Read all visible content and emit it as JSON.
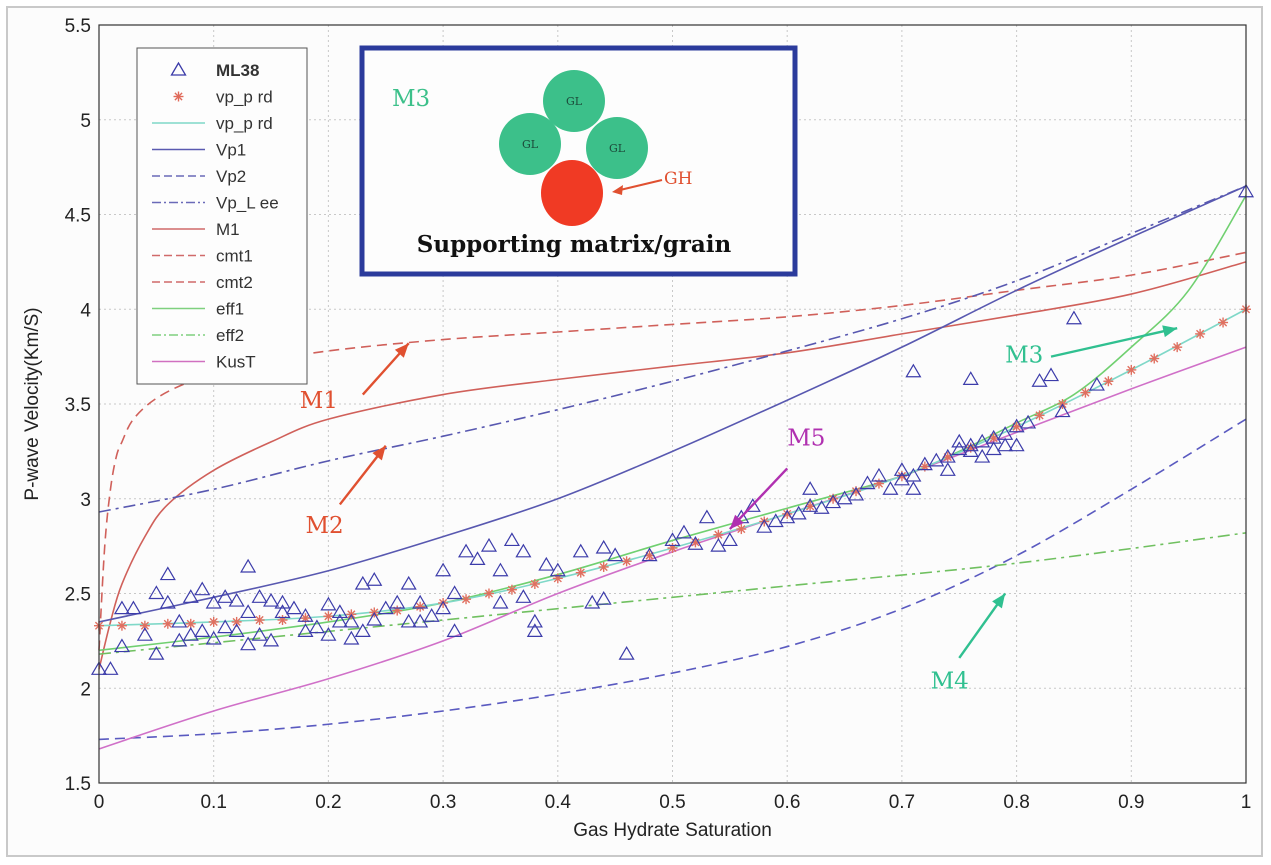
{
  "chart_data": {
    "type": "scatter",
    "xlabel": "Gas Hydrate Saturation",
    "ylabel": "P-wave Velocity(Km/S)",
    "xlim": [
      0,
      1
    ],
    "ylim": [
      1.5,
      5.5
    ],
    "xticks": [
      "0",
      "0.1",
      "0.2",
      "0.3",
      "0.4",
      "0.5",
      "0.6",
      "0.7",
      "0.8",
      "0.9",
      "1"
    ],
    "yticks": [
      "1.5",
      "2",
      "2.5",
      "3",
      "3.5",
      "4",
      "4.5",
      "5",
      "5.5"
    ],
    "grid": true,
    "legend_position": "top-left",
    "legend": [
      {
        "label": "ML38",
        "bold": true,
        "style": "triangle",
        "color": "#3a3aa8"
      },
      {
        "label": "vp_p rd",
        "style": "star",
        "color": "#e06a5a"
      },
      {
        "label": "vp_p rd",
        "style": "solid",
        "color": "#7fd8c8"
      },
      {
        "label": "Vp1",
        "style": "solid",
        "color": "#5a5ab0"
      },
      {
        "label": "Vp2",
        "style": "dashed",
        "color": "#6a6ab8"
      },
      {
        "label": "Vp_L ee",
        "style": "dashdot",
        "color": "#6a6ab8"
      },
      {
        "label": "M1",
        "style": "solid",
        "color": "#d06a6a"
      },
      {
        "label": "cmt1",
        "style": "dashed",
        "color": "#d06a6a"
      },
      {
        "label": "cmt2",
        "style": "dashed",
        "color": "#d06a6a"
      },
      {
        "label": "eff1",
        "style": "solid",
        "color": "#7fd07f"
      },
      {
        "label": "eff2",
        "style": "dashdot",
        "color": "#7fd07f"
      },
      {
        "label": "KusT",
        "style": "solid",
        "color": "#d070c0"
      }
    ],
    "series": [
      {
        "id": "cmt1",
        "color": "#d0605a",
        "dash": "10 6",
        "x": [
          0,
          0.005,
          0.01,
          0.015,
          0.02,
          0.03,
          0.05,
          0.08,
          0.12,
          0.2,
          0.3,
          0.4,
          0.5,
          0.6,
          0.7,
          0.8,
          0.9,
          1.0
        ],
        "y": [
          2.2,
          2.75,
          3.05,
          3.22,
          3.3,
          3.42,
          3.53,
          3.62,
          3.7,
          3.78,
          3.84,
          3.88,
          3.92,
          3.96,
          4.02,
          4.1,
          4.18,
          4.3
        ]
      },
      {
        "id": "cmt2",
        "color": "#d0605a",
        "dash": "",
        "x": [
          0,
          0.01,
          0.02,
          0.04,
          0.06,
          0.1,
          0.15,
          0.2,
          0.3,
          0.4,
          0.5,
          0.6,
          0.7,
          0.8,
          0.9,
          1.0
        ],
        "y": [
          2.1,
          2.35,
          2.55,
          2.8,
          2.97,
          3.15,
          3.3,
          3.42,
          3.55,
          3.63,
          3.7,
          3.77,
          3.87,
          3.97,
          4.08,
          4.25
        ]
      },
      {
        "id": "Vp1",
        "color": "#5858b0",
        "dash": "",
        "x": [
          0,
          0.1,
          0.2,
          0.3,
          0.4,
          0.5,
          0.6,
          0.7,
          0.8,
          0.9,
          1.0
        ],
        "y": [
          2.35,
          2.48,
          2.62,
          2.8,
          3.0,
          3.25,
          3.52,
          3.8,
          4.1,
          4.38,
          4.65
        ]
      },
      {
        "id": "VpLee",
        "color": "#5858b0",
        "dash": "12 5 3 5",
        "x": [
          0,
          0.1,
          0.2,
          0.3,
          0.4,
          0.5,
          0.6,
          0.7,
          0.8,
          0.9,
          1.0
        ],
        "y": [
          2.93,
          3.05,
          3.2,
          3.33,
          3.47,
          3.62,
          3.78,
          3.95,
          4.15,
          4.4,
          4.65
        ]
      },
      {
        "id": "Vp2",
        "color": "#5a5ac0",
        "dash": "10 6",
        "x": [
          0,
          0.1,
          0.2,
          0.3,
          0.4,
          0.5,
          0.6,
          0.7,
          0.8,
          0.9,
          1.0
        ],
        "y": [
          1.73,
          1.76,
          1.81,
          1.88,
          1.97,
          2.08,
          2.22,
          2.42,
          2.7,
          3.05,
          3.42
        ]
      },
      {
        "id": "eff1",
        "color": "#70d070",
        "dash": "",
        "x": [
          0,
          0.1,
          0.2,
          0.3,
          0.4,
          0.5,
          0.6,
          0.7,
          0.75,
          0.8,
          0.85,
          0.9,
          0.95,
          1.0
        ],
        "y": [
          2.2,
          2.27,
          2.35,
          2.45,
          2.6,
          2.78,
          2.95,
          3.12,
          3.25,
          3.4,
          3.55,
          3.8,
          4.1,
          4.6
        ]
      },
      {
        "id": "eff2",
        "color": "#70c060",
        "dash": "12 5 3 5",
        "x": [
          0,
          0.2,
          0.4,
          0.6,
          0.8,
          1.0
        ],
        "y": [
          2.18,
          2.3,
          2.42,
          2.54,
          2.66,
          2.82
        ]
      },
      {
        "id": "KusT",
        "color": "#d070c8",
        "dash": "",
        "x": [
          0,
          0.1,
          0.2,
          0.3,
          0.4,
          0.5,
          0.6,
          0.7,
          0.8,
          0.9,
          1.0
        ],
        "y": [
          1.68,
          1.88,
          2.05,
          2.25,
          2.5,
          2.72,
          2.92,
          3.12,
          3.35,
          3.58,
          3.8
        ]
      },
      {
        "id": "vpprd",
        "color": "#7fd8c8",
        "dash": "",
        "x": [
          0,
          0.1,
          0.2,
          0.3,
          0.4,
          0.5,
          0.6,
          0.7,
          0.8,
          0.9,
          1.0
        ],
        "y": [
          2.33,
          2.35,
          2.38,
          2.45,
          2.58,
          2.74,
          2.92,
          3.12,
          3.38,
          3.68,
          4.0
        ]
      }
    ],
    "stars_vpprd": {
      "color": "#e07060",
      "x": [
        0,
        0.02,
        0.04,
        0.06,
        0.08,
        0.1,
        0.12,
        0.14,
        0.16,
        0.18,
        0.2,
        0.22,
        0.24,
        0.26,
        0.28,
        0.3,
        0.32,
        0.34,
        0.36,
        0.38,
        0.4,
        0.42,
        0.44,
        0.46,
        0.48,
        0.5,
        0.52,
        0.54,
        0.56,
        0.58,
        0.6,
        0.62,
        0.64,
        0.66,
        0.68,
        0.7,
        0.72,
        0.74,
        0.76,
        0.78,
        0.8,
        0.82,
        0.84,
        0.86,
        0.88,
        0.9,
        0.92,
        0.94,
        0.96,
        0.98,
        1.0
      ],
      "y": [
        2.33,
        2.33,
        2.33,
        2.34,
        2.34,
        2.35,
        2.35,
        2.36,
        2.36,
        2.37,
        2.38,
        2.39,
        2.4,
        2.41,
        2.43,
        2.45,
        2.47,
        2.5,
        2.52,
        2.55,
        2.58,
        2.61,
        2.64,
        2.67,
        2.7,
        2.74,
        2.77,
        2.81,
        2.84,
        2.88,
        2.92,
        2.96,
        3.0,
        3.04,
        3.08,
        3.12,
        3.17,
        3.22,
        3.27,
        3.32,
        3.38,
        3.44,
        3.5,
        3.56,
        3.62,
        3.68,
        3.74,
        3.8,
        3.87,
        3.93,
        4.0
      ]
    },
    "ml38_points": {
      "color": "#3c3caa",
      "x": [
        0.0,
        0.01,
        0.02,
        0.02,
        0.03,
        0.04,
        0.05,
        0.05,
        0.06,
        0.06,
        0.07,
        0.07,
        0.08,
        0.08,
        0.09,
        0.09,
        0.1,
        0.1,
        0.11,
        0.11,
        0.12,
        0.12,
        0.13,
        0.13,
        0.13,
        0.14,
        0.14,
        0.15,
        0.15,
        0.16,
        0.16,
        0.17,
        0.18,
        0.18,
        0.19,
        0.2,
        0.2,
        0.21,
        0.21,
        0.22,
        0.22,
        0.23,
        0.23,
        0.24,
        0.24,
        0.25,
        0.26,
        0.27,
        0.27,
        0.28,
        0.28,
        0.29,
        0.3,
        0.3,
        0.31,
        0.31,
        0.32,
        0.33,
        0.34,
        0.35,
        0.35,
        0.36,
        0.37,
        0.37,
        0.38,
        0.38,
        0.39,
        0.4,
        0.42,
        0.43,
        0.44,
        0.44,
        0.45,
        0.46,
        0.48,
        0.5,
        0.51,
        0.52,
        0.53,
        0.54,
        0.55,
        0.56,
        0.57,
        0.58,
        0.59,
        0.6,
        0.61,
        0.62,
        0.62,
        0.63,
        0.64,
        0.65,
        0.66,
        0.67,
        0.68,
        0.69,
        0.7,
        0.7,
        0.71,
        0.71,
        0.72,
        0.73,
        0.74,
        0.74,
        0.75,
        0.75,
        0.76,
        0.76,
        0.77,
        0.77,
        0.78,
        0.78,
        0.79,
        0.79,
        0.8,
        0.8,
        0.81,
        0.82,
        0.83,
        0.84,
        0.85,
        0.87,
        0.71,
        0.76,
        1.0
      ],
      "y": [
        2.1,
        2.1,
        2.42,
        2.22,
        2.42,
        2.28,
        2.18,
        2.5,
        2.45,
        2.6,
        2.25,
        2.35,
        2.28,
        2.48,
        2.52,
        2.3,
        2.45,
        2.26,
        2.48,
        2.32,
        2.3,
        2.46,
        2.23,
        2.64,
        2.4,
        2.28,
        2.48,
        2.46,
        2.25,
        2.4,
        2.45,
        2.42,
        2.38,
        2.3,
        2.32,
        2.28,
        2.44,
        2.35,
        2.4,
        2.26,
        2.35,
        2.3,
        2.55,
        2.36,
        2.57,
        2.42,
        2.45,
        2.35,
        2.55,
        2.35,
        2.45,
        2.38,
        2.42,
        2.62,
        2.3,
        2.5,
        2.72,
        2.68,
        2.75,
        2.62,
        2.45,
        2.78,
        2.48,
        2.72,
        2.35,
        2.3,
        2.65,
        2.62,
        2.72,
        2.45,
        2.74,
        2.47,
        2.7,
        2.18,
        2.7,
        2.78,
        2.82,
        2.76,
        2.9,
        2.75,
        2.78,
        2.9,
        2.96,
        2.85,
        2.88,
        2.9,
        2.92,
        2.96,
        3.05,
        2.95,
        2.98,
        3.0,
        3.02,
        3.08,
        3.12,
        3.05,
        3.1,
        3.15,
        3.05,
        3.12,
        3.18,
        3.2,
        3.22,
        3.15,
        3.26,
        3.3,
        3.25,
        3.28,
        3.3,
        3.22,
        3.32,
        3.26,
        3.28,
        3.34,
        3.38,
        3.28,
        3.4,
        3.62,
        3.65,
        3.46,
        3.95,
        3.6,
        3.67,
        3.63,
        4.62
      ]
    },
    "annotations": [
      {
        "label": "M1",
        "color": "#e05030",
        "data_x": 0.175,
        "data_y": 3.48,
        "arrow_to": [
          0.27,
          3.82
        ],
        "arrow_from": [
          0.23,
          3.55
        ]
      },
      {
        "label": "M2",
        "color": "#e05030",
        "data_x": 0.18,
        "data_y": 2.82,
        "arrow_to": [
          0.25,
          3.28
        ],
        "arrow_from": [
          0.21,
          2.97
        ]
      },
      {
        "label": "M3",
        "color": "#30c090",
        "data_x": 0.79,
        "data_y": 3.72,
        "arrow_to": [
          0.94,
          3.9
        ],
        "arrow_from": [
          0.83,
          3.75
        ]
      },
      {
        "label": "M4",
        "color": "#30c090",
        "data_x": 0.725,
        "data_y": 2.0,
        "arrow_to": [
          0.79,
          2.5
        ],
        "arrow_from": [
          0.75,
          2.16
        ]
      },
      {
        "label": "M5",
        "color": "#b030b0",
        "data_x": 0.6,
        "data_y": 3.28,
        "arrow_to": [
          0.55,
          2.84
        ],
        "arrow_from": [
          0.6,
          3.16
        ]
      }
    ],
    "inset": {
      "label": "M3",
      "grain_label": "GL",
      "hydrate_label": "GH",
      "caption": "Supporting matrix/grain",
      "border_color": "#2b3b9c",
      "grain_color": "#3cc08a",
      "hydrate_color": "#f03a24"
    }
  }
}
